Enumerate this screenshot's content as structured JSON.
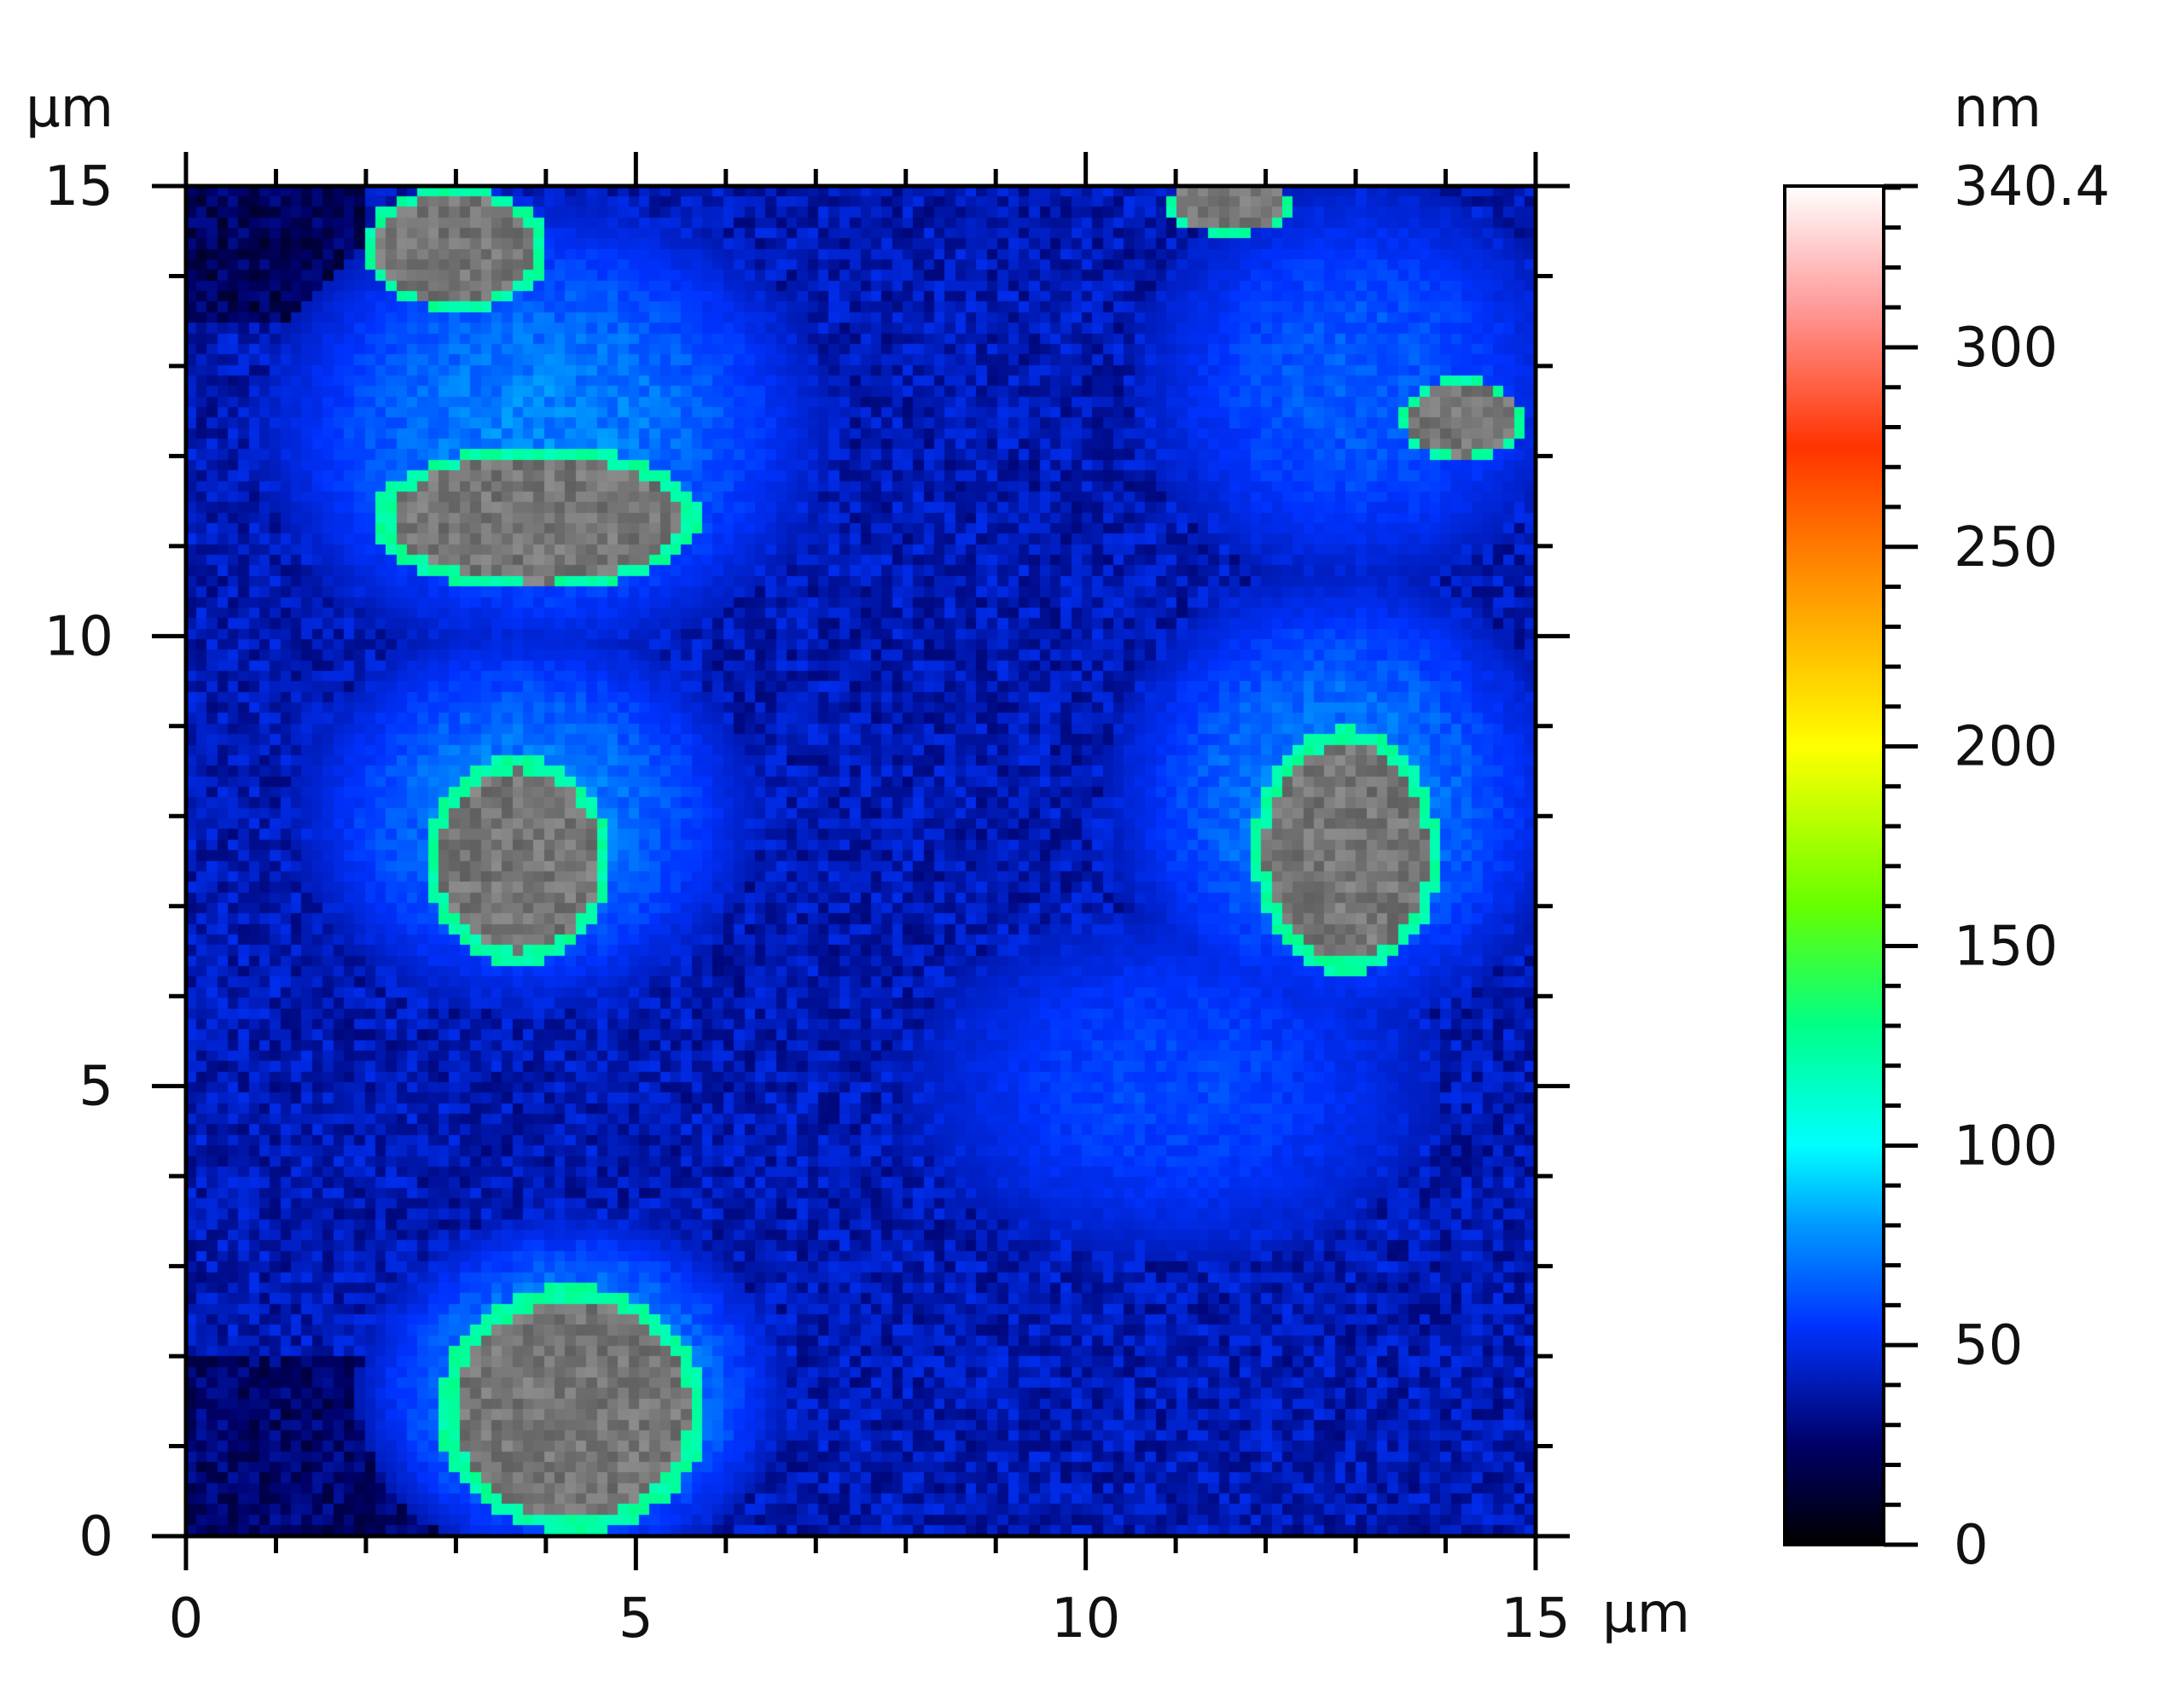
{
  "chart_data": {
    "type": "heatmap",
    "title": "",
    "x_axis": {
      "unit_label": "µm",
      "range": [
        0,
        15
      ],
      "ticks": [
        "0",
        "5",
        "10",
        "15"
      ]
    },
    "y_axis": {
      "unit_label": "µm",
      "range": [
        0,
        15
      ],
      "ticks": [
        "0",
        "5",
        "10",
        "15"
      ]
    },
    "colorbar": {
      "unit_label": "nm",
      "range": [
        0,
        340.4
      ],
      "ticks": [
        "0",
        "50",
        "100",
        "150",
        "200",
        "250",
        "300",
        "340.4"
      ],
      "colormap": [
        {
          "value": 0,
          "color": "#000000"
        },
        {
          "value": 25,
          "color": "#000066"
        },
        {
          "value": 55,
          "color": "#0033ff"
        },
        {
          "value": 80,
          "color": "#0099ff"
        },
        {
          "value": 100,
          "color": "#00ffff"
        },
        {
          "value": 130,
          "color": "#00ff88"
        },
        {
          "value": 160,
          "color": "#66ff00"
        },
        {
          "value": 200,
          "color": "#ffff00"
        },
        {
          "value": 245,
          "color": "#ff8800"
        },
        {
          "value": 275,
          "color": "#ff3300"
        },
        {
          "value": 310,
          "color": "#ff9999"
        },
        {
          "value": 340.4,
          "color": "#ffffff"
        }
      ]
    },
    "background_level": 40,
    "grains": [
      {
        "x": 4.3,
        "y": 1.4,
        "rx": 1.3,
        "ry": 1.2,
        "height": 145
      },
      {
        "x": 3.7,
        "y": 7.5,
        "rx": 0.9,
        "ry": 1.0,
        "height": 140
      },
      {
        "x": 3.9,
        "y": 11.3,
        "rx": 1.6,
        "ry": 0.7,
        "height": 140
      },
      {
        "x": 3.0,
        "y": 14.3,
        "rx": 0.9,
        "ry": 0.6,
        "height": 135
      },
      {
        "x": 12.9,
        "y": 7.6,
        "rx": 0.9,
        "ry": 1.2,
        "height": 140
      },
      {
        "x": 11.6,
        "y": 14.8,
        "rx": 0.6,
        "ry": 0.3,
        "height": 130
      },
      {
        "x": 14.2,
        "y": 12.4,
        "rx": 0.6,
        "ry": 0.4,
        "height": 125
      }
    ],
    "halos": [
      {
        "x": 4.3,
        "y": 1.6,
        "rx": 2.4,
        "ry": 2.0,
        "height": 85
      },
      {
        "x": 3.8,
        "y": 8.0,
        "rx": 2.6,
        "ry": 2.2,
        "height": 75
      },
      {
        "x": 4.0,
        "y": 12.3,
        "rx": 3.2,
        "ry": 2.6,
        "height": 75
      },
      {
        "x": 12.8,
        "y": 8.2,
        "rx": 2.6,
        "ry": 2.6,
        "height": 75
      },
      {
        "x": 13.0,
        "y": 12.8,
        "rx": 2.5,
        "ry": 2.3,
        "height": 65
      },
      {
        "x": 11.0,
        "y": 5.0,
        "rx": 3.0,
        "ry": 2.0,
        "height": 60
      }
    ]
  }
}
